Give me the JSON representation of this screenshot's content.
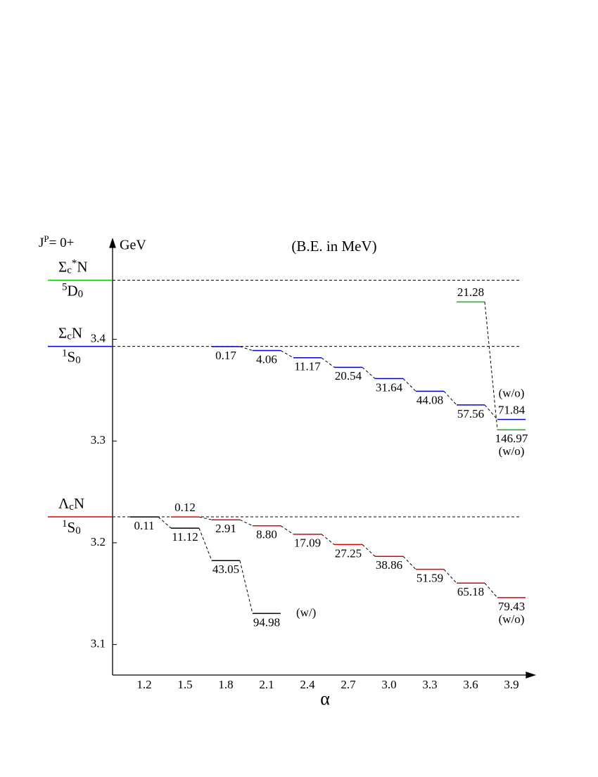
{
  "chart_data": {
    "type": "level",
    "title": "(B.E. in MeV)",
    "quantum": {
      "base": "J",
      "sup": "P",
      "tail": "= 0+"
    },
    "ylabel": "GeV",
    "xlabel": "α",
    "categories": [
      "1.2",
      "1.5",
      "1.8",
      "2.1",
      "2.4",
      "2.7",
      "3.0",
      "3.3",
      "3.6",
      "3.9"
    ],
    "ylim": [
      3.07,
      3.495
    ],
    "yticks": [
      3.1,
      3.2,
      3.3,
      3.4
    ],
    "thresholds": [
      {
        "value": 3.2255,
        "color": "#e00000",
        "particle": {
          "base": "Λ",
          "sub": "c",
          "sup": "",
          "tail": "N"
        },
        "wave": {
          "sup": "1",
          "base": "S",
          "sub": "0"
        },
        "series": [
          {
            "color": "#000000",
            "note": "(w/)",
            "values": [
              0.11,
              11.12,
              43.05,
              94.98,
              null,
              null,
              null,
              null,
              null,
              null
            ]
          },
          {
            "color": "#e00000",
            "note": "(w/o)",
            "values": [
              null,
              0.12,
              2.91,
              8.8,
              17.09,
              27.25,
              38.86,
              51.59,
              65.18,
              79.43
            ],
            "value_labels": [
              null,
              "0.12",
              "2.91",
              "8.80",
              "17.09",
              "27.25",
              "38.86",
              "51.59",
              "65.18",
              "79.43"
            ]
          }
        ]
      },
      {
        "value": 3.393,
        "color": "#0000d0",
        "particle": {
          "base": "Σ",
          "sub": "c",
          "sup": "",
          "tail": "N"
        },
        "wave": {
          "sup": "1",
          "base": "S",
          "sub": "0"
        },
        "series": [
          {
            "color": "#0000d0",
            "note": "(w/o)",
            "values": [
              null,
              null,
              0.17,
              4.06,
              11.17,
              20.54,
              31.64,
              44.08,
              57.56,
              71.84
            ]
          }
        ]
      },
      {
        "value": 3.458,
        "color": "#00c000",
        "particle": {
          "base": "Σ",
          "sub": "c",
          "sup": "*",
          "tail": "N"
        },
        "wave": {
          "sup": "5",
          "base": "D",
          "sub": "0"
        },
        "series": [
          {
            "color": "#00c000",
            "note": "(w/o)",
            "values": [
              null,
              null,
              null,
              null,
              null,
              null,
              null,
              null,
              21.28,
              146.97
            ]
          }
        ]
      }
    ]
  }
}
